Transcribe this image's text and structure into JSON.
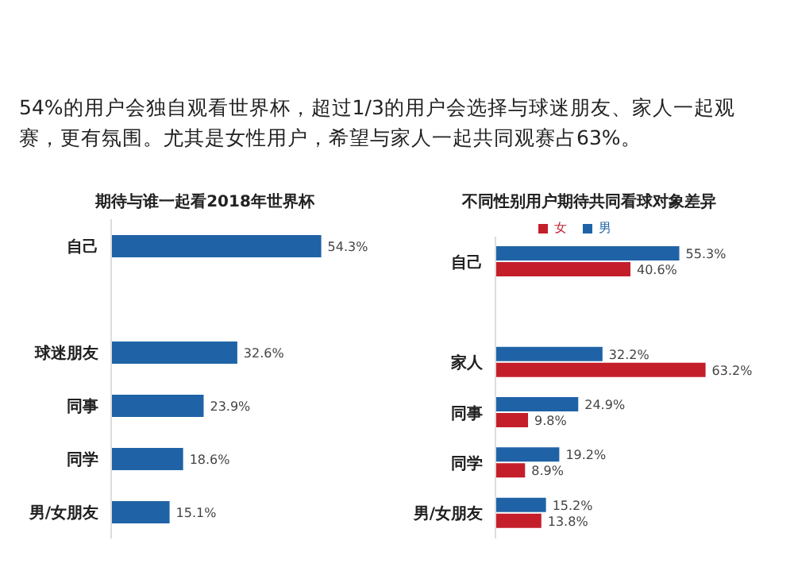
{
  "chart_data": [
    {
      "type": "bar",
      "orientation": "horizontal",
      "title": "期待与谁一起看2018年世界杯",
      "annotations": [
        "54%的用户会独自观看世界杯，超过1/3的用户会选择与球迷朋友、家人一起观赛，更有氛围。尤其是女性用户，希望与家人一起共同观赛占63%。"
      ],
      "categories": [
        "自己",
        null,
        "球迷朋友",
        "同事",
        "同学",
        "男/女朋友"
      ],
      "values": [
        54.3,
        null,
        32.6,
        23.9,
        18.6,
        15.1
      ],
      "value_labels": [
        "54.3%",
        null,
        "32.6%",
        "23.9%",
        "18.6%",
        "15.1%"
      ],
      "color": "#1f63a6",
      "grid": false,
      "legend": false
    },
    {
      "type": "bar",
      "orientation": "horizontal",
      "title": "不同性别用户期待共同看球对象差异",
      "categories": [
        "自己",
        null,
        "家人",
        "同事",
        "同学",
        "男/女朋友"
      ],
      "legend": "top",
      "grid": false,
      "series": [
        {
          "name": "男",
          "color": "#1f63a6",
          "values": [
            55.3,
            null,
            32.2,
            24.9,
            19.2,
            15.2
          ],
          "value_labels": [
            "55.3%",
            null,
            "32.2%",
            "24.9%",
            "19.2%",
            "15.2%"
          ]
        },
        {
          "name": "女",
          "color": "#c41e2b",
          "values": [
            40.6,
            null,
            63.2,
            9.8,
            8.9,
            13.8
          ],
          "value_labels": [
            "40.6%",
            null,
            "63.2%",
            "9.8%",
            "8.9%",
            "13.8%"
          ]
        }
      ]
    }
  ]
}
